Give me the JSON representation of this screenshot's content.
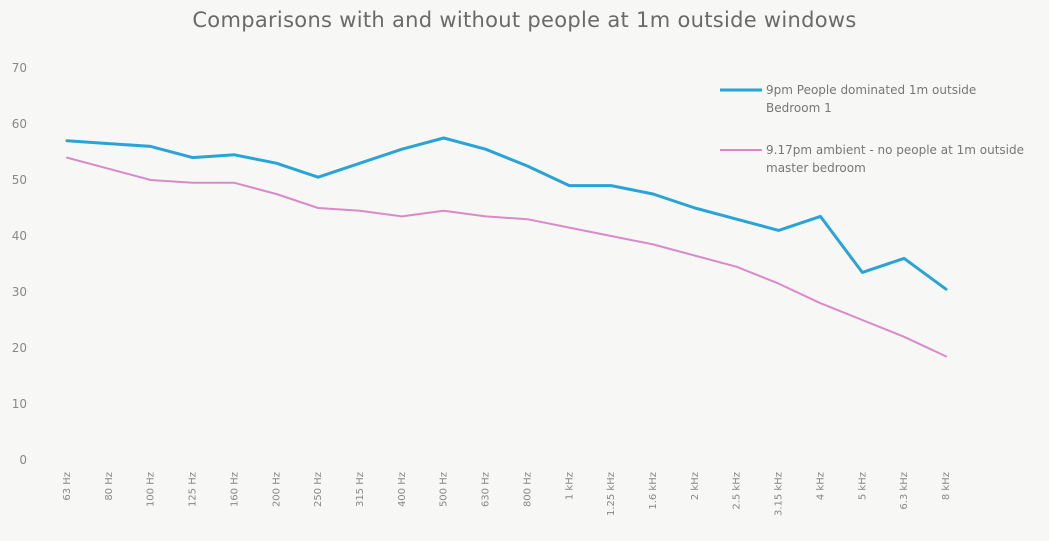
{
  "chart_data": {
    "type": "line",
    "title": "Comparisons with and without people at 1m outside windows",
    "xlabel": "",
    "ylabel": "",
    "ylim": [
      0,
      70
    ],
    "yticks": [
      0,
      10,
      20,
      30,
      40,
      50,
      60,
      70
    ],
    "grid": false,
    "legend_position": "right",
    "categories": [
      "63 Hz",
      "80 Hz",
      "100 Hz",
      "125 Hz",
      "160 Hz",
      "200 Hz",
      "250 Hz",
      "315 Hz",
      "400 Hz",
      "500 Hz",
      "630 Hz",
      "800 Hz",
      "1 kHz",
      "1.25 kHz",
      "1.6 kHz",
      "2 kHz",
      "2.5 kHz",
      "3.15 kHz",
      "4 kHz",
      "5 kHz",
      "6.3 kHz",
      "8 kHz"
    ],
    "series": [
      {
        "name": "9pm People dominated 1m outside Bedroom 1",
        "color": "#2aa3d6",
        "values": [
          57,
          56.5,
          56,
          54,
          54.5,
          53,
          50.5,
          53,
          55.5,
          57.5,
          55.5,
          52.5,
          49,
          49,
          47.5,
          45,
          43,
          41,
          43.5,
          33.5,
          36,
          30.5
        ]
      },
      {
        "name": "9.17pm ambient - no people at 1m outside master bedroom",
        "color": "#d98ac8",
        "values": [
          54,
          52,
          50,
          49.5,
          49.5,
          47.5,
          45,
          44.5,
          43.5,
          44.5,
          43.5,
          43,
          41.5,
          40,
          38.5,
          36.5,
          34.5,
          31.5,
          28,
          25,
          22,
          18.5
        ]
      }
    ]
  }
}
